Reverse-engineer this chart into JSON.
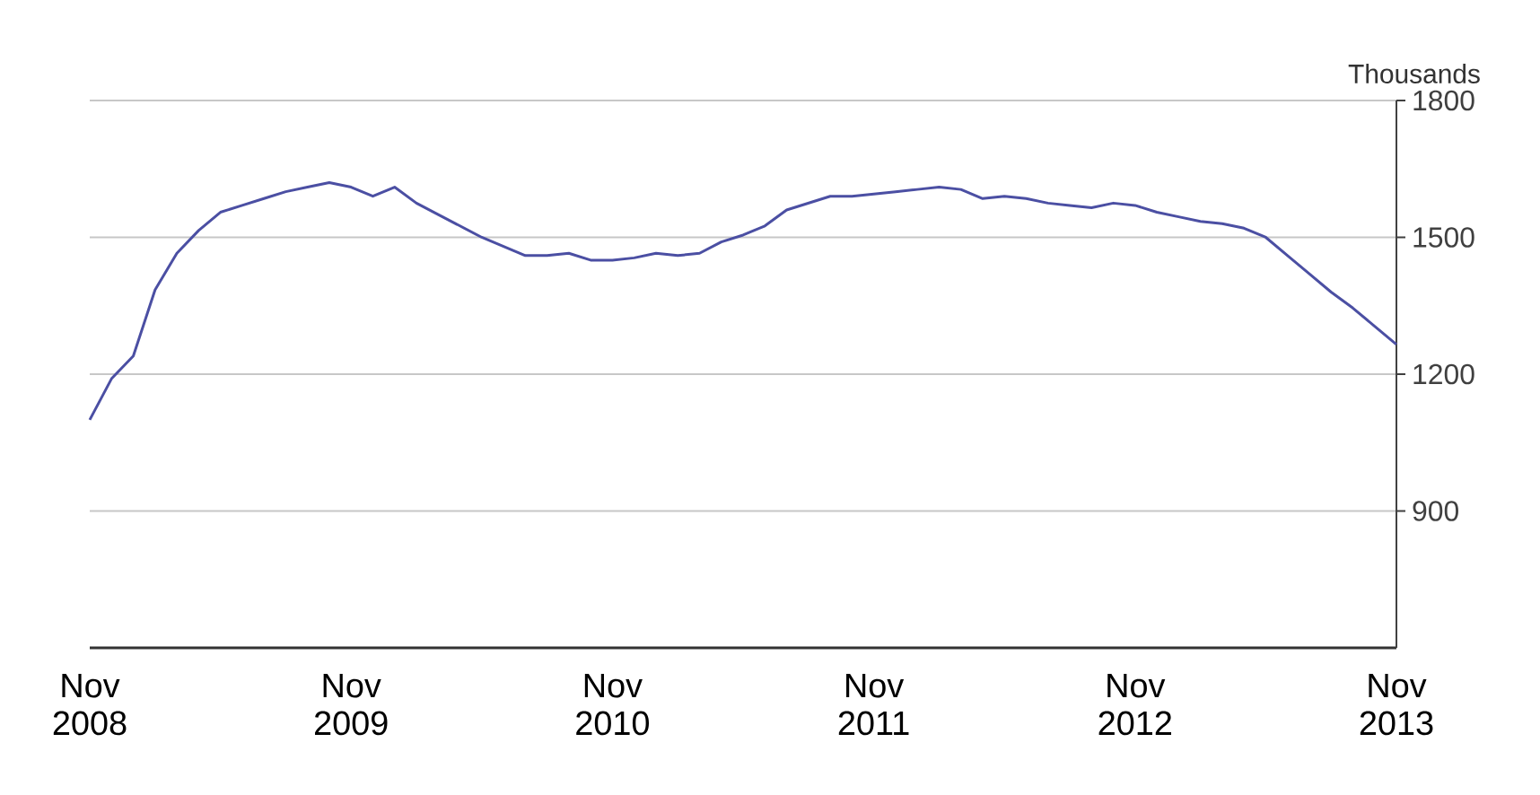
{
  "chart_data": {
    "type": "line",
    "ylabel": "Thousands",
    "x": [
      "2008-11",
      "2008-12",
      "2009-01",
      "2009-02",
      "2009-03",
      "2009-04",
      "2009-05",
      "2009-06",
      "2009-07",
      "2009-08",
      "2009-09",
      "2009-10",
      "2009-11",
      "2009-12",
      "2010-01",
      "2010-02",
      "2010-03",
      "2010-04",
      "2010-05",
      "2010-06",
      "2010-07",
      "2010-08",
      "2010-09",
      "2010-10",
      "2010-11",
      "2010-12",
      "2011-01",
      "2011-02",
      "2011-03",
      "2011-04",
      "2011-05",
      "2011-06",
      "2011-07",
      "2011-08",
      "2011-09",
      "2011-10",
      "2011-11",
      "2011-12",
      "2012-01",
      "2012-02",
      "2012-03",
      "2012-04",
      "2012-05",
      "2012-06",
      "2012-07",
      "2012-08",
      "2012-09",
      "2012-10",
      "2012-11",
      "2012-12",
      "2013-01",
      "2013-02",
      "2013-03",
      "2013-04",
      "2013-05",
      "2013-06",
      "2013-07",
      "2013-08",
      "2013-09",
      "2013-10",
      "2013-11"
    ],
    "values": [
      1100,
      1190,
      1240,
      1385,
      1465,
      1515,
      1555,
      1570,
      1585,
      1600,
      1610,
      1620,
      1610,
      1590,
      1610,
      1575,
      1550,
      1525,
      1500,
      1480,
      1460,
      1460,
      1465,
      1450,
      1450,
      1455,
      1465,
      1460,
      1465,
      1490,
      1505,
      1525,
      1560,
      1575,
      1590,
      1590,
      1595,
      1600,
      1605,
      1610,
      1605,
      1585,
      1590,
      1585,
      1575,
      1570,
      1565,
      1575,
      1570,
      1555,
      1545,
      1535,
      1530,
      1520,
      1500,
      1460,
      1420,
      1380,
      1345,
      1305,
      1265
    ],
    "color": "#4b4fa3",
    "xlim": [
      "2008-11",
      "2013-11"
    ],
    "xticks": [
      {
        "value": "2008-11",
        "label": "Nov 2008"
      },
      {
        "value": "2009-11",
        "label": "Nov 2009"
      },
      {
        "value": "2010-11",
        "label": "Nov 2010"
      },
      {
        "value": "2011-11",
        "label": "Nov 2011"
      },
      {
        "value": "2012-11",
        "label": "Nov 2012"
      },
      {
        "value": "2013-11",
        "label": "Nov 2013"
      }
    ],
    "ylim": [
      600,
      1800
    ],
    "yticks": [
      900,
      1200,
      1500,
      1800
    ],
    "grid": "y"
  }
}
